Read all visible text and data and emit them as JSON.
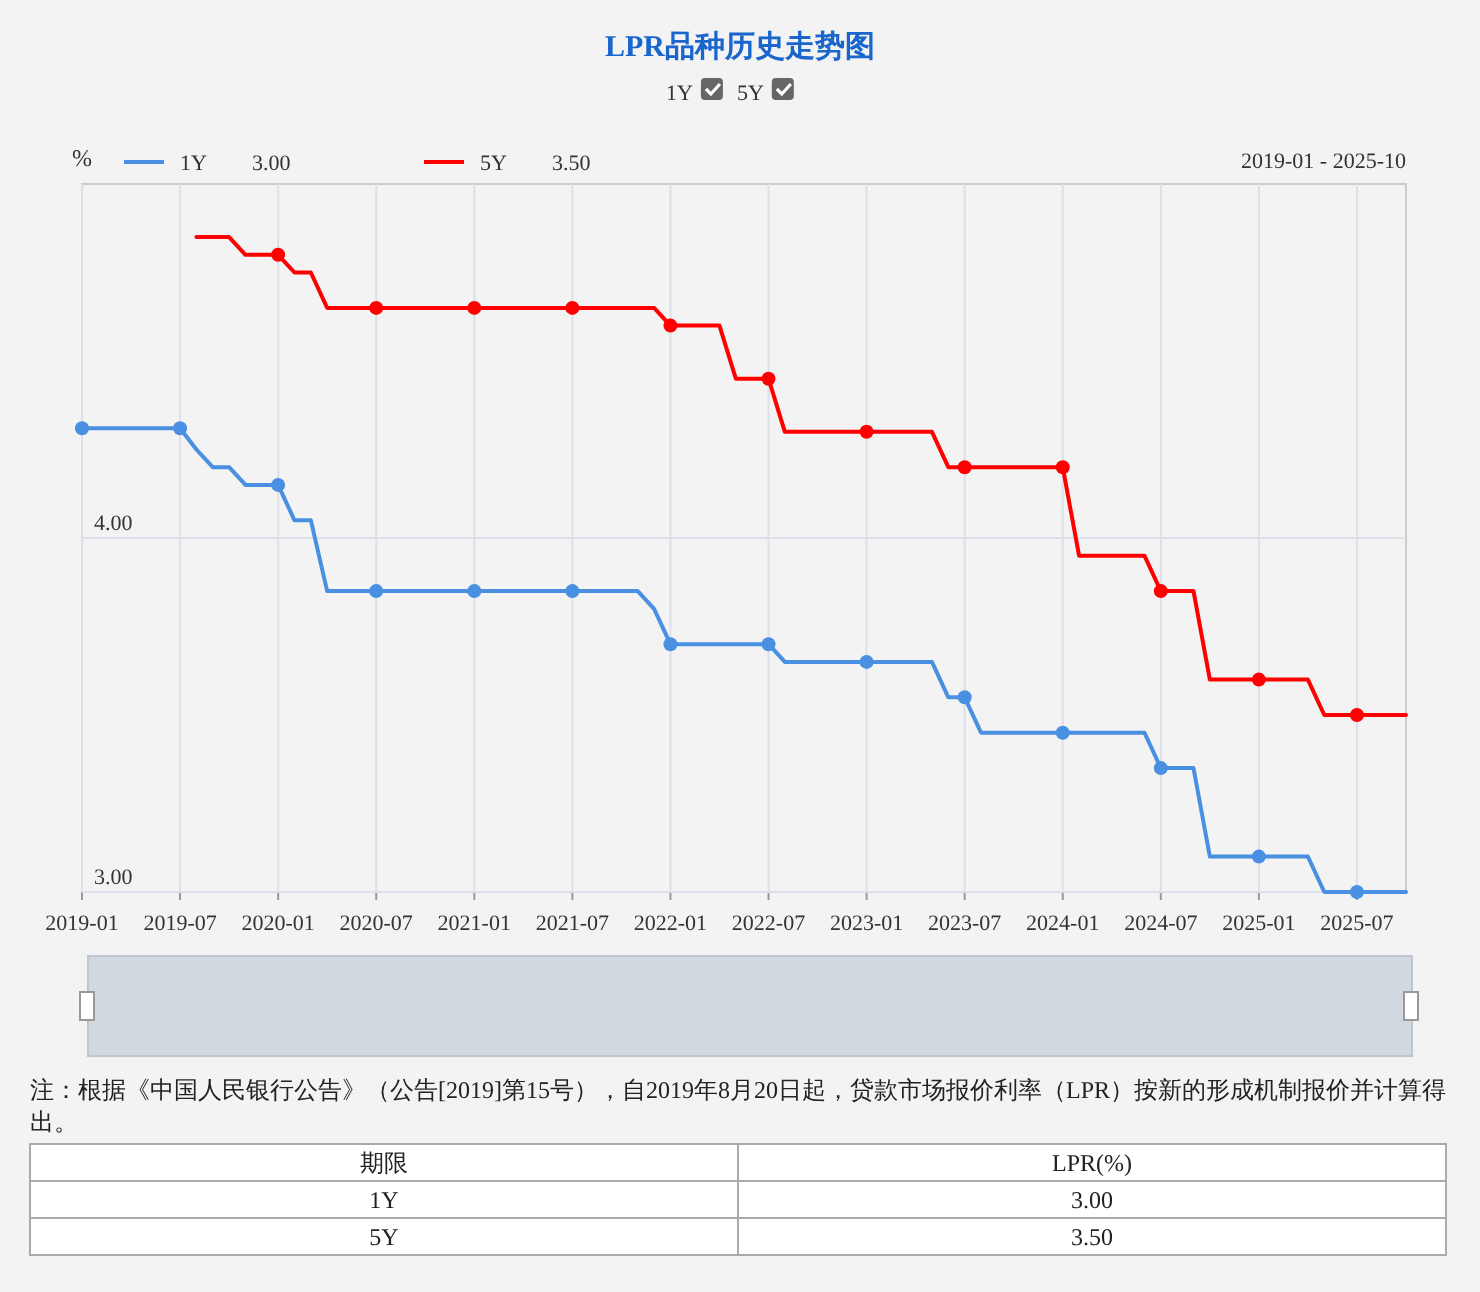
{
  "chart_data": [
    {
      "type": "line",
      "title": "LPR品种历史走势图",
      "ylabel": "%",
      "annotations": [
        "2019-01 - 2025-10"
      ],
      "x": [
        "2019-01",
        "2019-02",
        "2019-03",
        "2019-04",
        "2019-05",
        "2019-06",
        "2019-07",
        "2019-08",
        "2019-09",
        "2019-10",
        "2019-11",
        "2019-12",
        "2020-01",
        "2020-02",
        "2020-03",
        "2020-04",
        "2020-05",
        "2020-06",
        "2020-07",
        "2020-08",
        "2020-09",
        "2020-10",
        "2020-11",
        "2020-12",
        "2021-01",
        "2021-02",
        "2021-03",
        "2021-04",
        "2021-05",
        "2021-06",
        "2021-07",
        "2021-08",
        "2021-09",
        "2021-10",
        "2021-11",
        "2021-12",
        "2022-01",
        "2022-02",
        "2022-03",
        "2022-04",
        "2022-05",
        "2022-06",
        "2022-07",
        "2022-08",
        "2022-09",
        "2022-10",
        "2022-11",
        "2022-12",
        "2023-01",
        "2023-02",
        "2023-03",
        "2023-04",
        "2023-05",
        "2023-06",
        "2023-07",
        "2023-08",
        "2023-09",
        "2023-10",
        "2023-11",
        "2023-12",
        "2024-01",
        "2024-02",
        "2024-03",
        "2024-04",
        "2024-05",
        "2024-06",
        "2024-07",
        "2024-08",
        "2024-09",
        "2024-10",
        "2024-11",
        "2024-12",
        "2025-01",
        "2025-02",
        "2025-03",
        "2025-04",
        "2025-05",
        "2025-06",
        "2025-07",
        "2025-08",
        "2025-09",
        "2025-10"
      ],
      "series": [
        {
          "name": "1Y",
          "color": "#4a90e2",
          "values": [
            4.31,
            4.31,
            4.31,
            4.31,
            4.31,
            4.31,
            4.31,
            4.25,
            4.2,
            4.2,
            4.15,
            4.15,
            4.15,
            4.05,
            4.05,
            3.85,
            3.85,
            3.85,
            3.85,
            3.85,
            3.85,
            3.85,
            3.85,
            3.85,
            3.85,
            3.85,
            3.85,
            3.85,
            3.85,
            3.85,
            3.85,
            3.85,
            3.85,
            3.85,
            3.85,
            3.8,
            3.7,
            3.7,
            3.7,
            3.7,
            3.7,
            3.7,
            3.7,
            3.65,
            3.65,
            3.65,
            3.65,
            3.65,
            3.65,
            3.65,
            3.65,
            3.65,
            3.65,
            3.55,
            3.55,
            3.45,
            3.45,
            3.45,
            3.45,
            3.45,
            3.45,
            3.45,
            3.45,
            3.45,
            3.45,
            3.45,
            3.35,
            3.35,
            3.35,
            3.1,
            3.1,
            3.1,
            3.1,
            3.1,
            3.1,
            3.1,
            3.0,
            3.0,
            3.0,
            3.0,
            3.0,
            3.0
          ]
        },
        {
          "type": "scatter",
          "color": "#4a90e2",
          "x": [
            "2019-01",
            "2019-07",
            "2020-01",
            "2020-07",
            "2021-01",
            "2021-07",
            "2022-01",
            "2022-07",
            "2023-01",
            "2023-07",
            "2024-01",
            "2024-07",
            "2025-01",
            "2025-07"
          ],
          "values": [
            4.31,
            4.31,
            4.15,
            3.85,
            3.85,
            3.85,
            3.7,
            3.7,
            3.65,
            3.55,
            3.45,
            3.35,
            3.1,
            3.0
          ]
        },
        {
          "type": "scatter",
          "color": "#ff0000",
          "x": [
            "2020-01",
            "2020-07",
            "2021-01",
            "2021-07",
            "2022-01",
            "2022-07",
            "2023-01",
            "2023-07",
            "2024-01",
            "2024-07",
            "2025-01",
            "2025-07"
          ],
          "values": [
            4.8,
            4.65,
            4.65,
            4.65,
            4.6,
            4.45,
            4.3,
            4.2,
            4.2,
            3.85,
            3.6,
            3.5
          ]
        },
        {
          "name": "5Y",
          "color": "#ff0000",
          "values": [
            null,
            null,
            null,
            null,
            null,
            null,
            null,
            4.85,
            4.85,
            4.85,
            4.8,
            4.8,
            4.8,
            4.75,
            4.75,
            4.65,
            4.65,
            4.65,
            4.65,
            4.65,
            4.65,
            4.65,
            4.65,
            4.65,
            4.65,
            4.65,
            4.65,
            4.65,
            4.65,
            4.65,
            4.65,
            4.65,
            4.65,
            4.65,
            4.65,
            4.65,
            4.6,
            4.6,
            4.6,
            4.6,
            4.45,
            4.45,
            4.45,
            4.3,
            4.3,
            4.3,
            4.3,
            4.3,
            4.3,
            4.3,
            4.3,
            4.3,
            4.3,
            4.2,
            4.2,
            4.2,
            4.2,
            4.2,
            4.2,
            4.2,
            4.2,
            3.95,
            3.95,
            3.95,
            3.95,
            3.95,
            3.85,
            3.85,
            3.85,
            3.6,
            3.6,
            3.6,
            3.6,
            3.6,
            3.6,
            3.6,
            3.5,
            3.5,
            3.5,
            3.5,
            3.5,
            3.5
          ]
        }
      ],
      "xlim": [
        "2019-01",
        "2025-10"
      ],
      "xticks": [
        "2019-01",
        "2019-07",
        "2020-01",
        "2020-07",
        "2021-01",
        "2021-07",
        "2022-01",
        "2022-07",
        "2023-01",
        "2023-07",
        "2024-01",
        "2024-07",
        "2025-01",
        "2025-07"
      ],
      "ylim": [
        3,
        5
      ],
      "yticks": [
        {
          "value": 3,
          "label": "3.00"
        },
        {
          "value": 4,
          "label": "4.00"
        }
      ],
      "grid": true,
      "legend": "top left",
      "line_style": "solid"
    },
    {
      "type": "other",
      "annotations": [
        "注：根据《中国人民银行公告》（公告[2019]第15号），自2019年8月20日起，贷款市场报价利率（LPR）按新的形成机制报价并计算得出。",
        "期限",
        "LPR(%)",
        "1Y",
        "3.00",
        "5Y",
        "3.50"
      ]
    }
  ]
}
